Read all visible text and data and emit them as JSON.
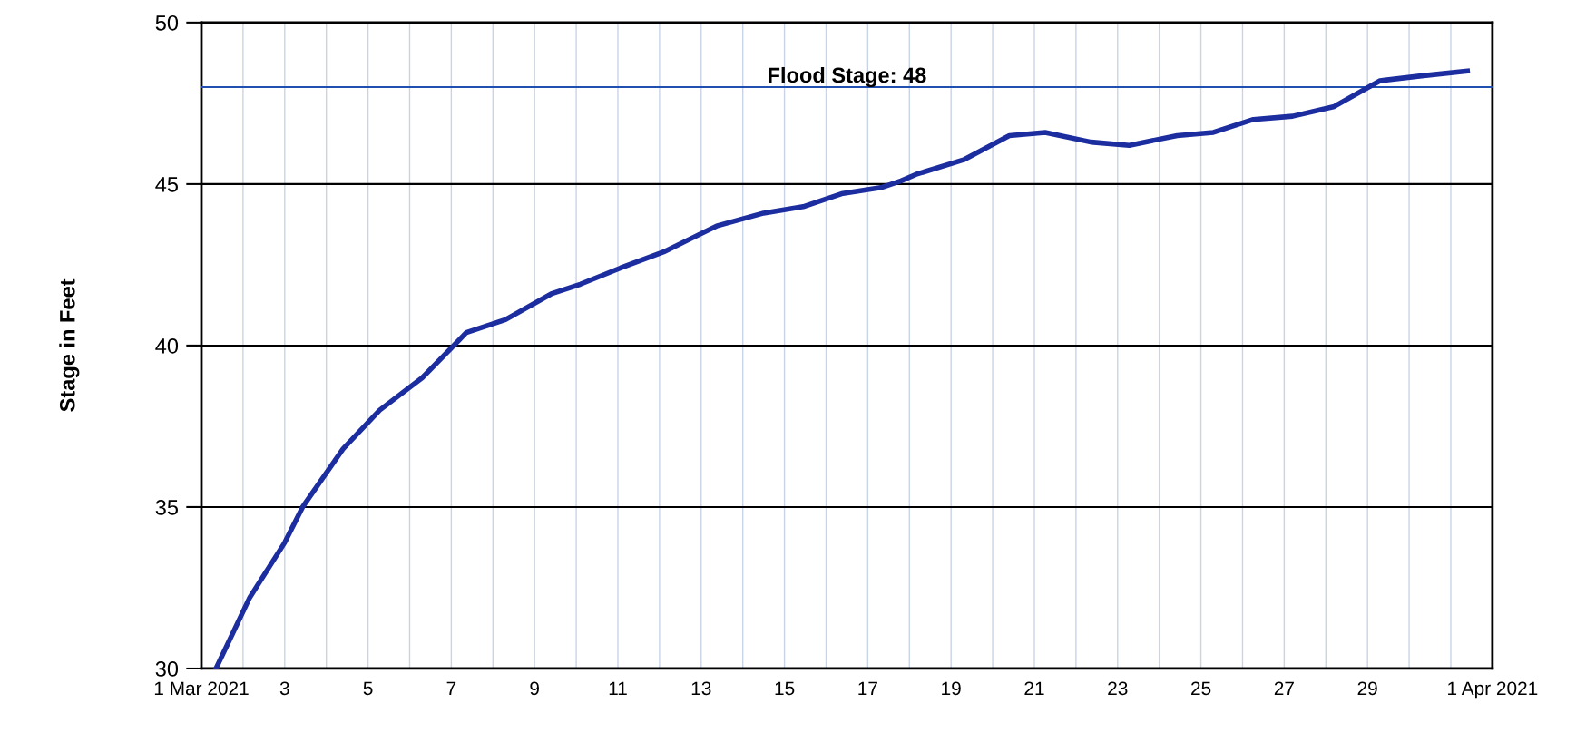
{
  "chart_data": {
    "type": "line",
    "ylabel": "Stage in Feet",
    "x": [
      1.35,
      2.16,
      3.0,
      3.43,
      4.4,
      5.28,
      6.3,
      7.36,
      8.3,
      9.4,
      10.1,
      11.06,
      12.1,
      13.37,
      14.5,
      15.45,
      16.37,
      17.35,
      17.8,
      18.16,
      19.3,
      20.4,
      21.26,
      22.36,
      23.28,
      24.43,
      25.3,
      26.26,
      27.2,
      28.2,
      29.3,
      30.3,
      31.4
    ],
    "series": [
      {
        "color": "#1c2da0",
        "values": [
          30.0,
          32.2,
          33.9,
          35.0,
          36.8,
          38.0,
          39.0,
          40.4,
          40.8,
          41.6,
          41.9,
          42.4,
          42.9,
          43.7,
          44.1,
          44.3,
          44.7,
          44.9,
          45.1,
          45.3,
          45.75,
          46.5,
          46.6,
          46.3,
          46.2,
          46.5,
          46.6,
          47.0,
          47.1,
          47.4,
          48.2,
          48.35,
          48.5
        ]
      }
    ],
    "xlim": [
      1,
      32
    ],
    "ylim": [
      30,
      50
    ],
    "yticks": [
      30,
      35,
      40,
      45,
      50
    ],
    "xticks": [
      {
        "value": 1,
        "label": "1 Mar 2021"
      },
      {
        "value": 2,
        "label": null
      },
      3,
      {
        "value": 4,
        "label": null
      },
      5,
      {
        "value": 6,
        "label": null
      },
      7,
      {
        "value": 8,
        "label": null
      },
      9,
      {
        "value": 10,
        "label": null
      },
      11,
      {
        "value": 12,
        "label": null
      },
      13,
      {
        "value": 14,
        "label": null
      },
      15,
      {
        "value": 16,
        "label": null
      },
      17,
      {
        "value": 18,
        "label": null
      },
      19,
      {
        "value": 20,
        "label": null
      },
      21,
      {
        "value": 22,
        "label": null
      },
      23,
      {
        "value": 24,
        "label": null
      },
      25,
      {
        "value": 26,
        "label": null
      },
      27,
      {
        "value": 28,
        "label": null
      },
      29,
      {
        "value": 30,
        "label": null
      },
      {
        "value": 31,
        "label": null
      },
      {
        "value": 32,
        "label": "1 Apr 2021"
      }
    ],
    "ref_lines": [
      {
        "axis": "y",
        "value": 48,
        "label": "Flood Stage: 48",
        "color": "#1f4fb0"
      }
    ],
    "grid": true,
    "legend": false,
    "marker": "none",
    "line_style": "solid"
  }
}
